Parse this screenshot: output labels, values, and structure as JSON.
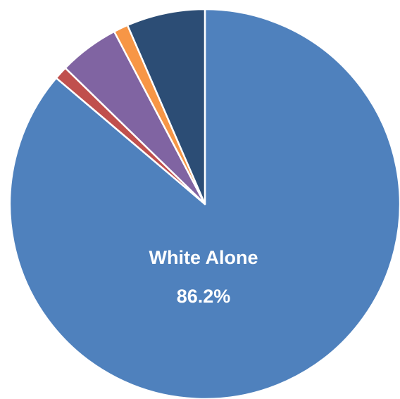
{
  "chart_data": {
    "type": "pie",
    "slices": [
      {
        "label": "White Alone",
        "value": 86.2,
        "color": "#4f81bd",
        "shown_label": "White Alone",
        "shown_value": "86.2%"
      },
      {
        "label": "",
        "value": 1.1,
        "color": "#c0504d",
        "shown_label": "",
        "shown_value": ""
      },
      {
        "label": "",
        "value": 5.0,
        "color": "#8064a2",
        "shown_label": "",
        "shown_value": ""
      },
      {
        "label": "",
        "value": 1.2,
        "color": "#f79646",
        "shown_label": "",
        "shown_value": ""
      },
      {
        "label": "",
        "value": 6.5,
        "color": "#2c4d75",
        "shown_label": "",
        "shown_value": ""
      }
    ],
    "start_angle_deg": 0,
    "direction": "clockwise",
    "slice_border_color": "#ffffff",
    "title": "",
    "legend": "none"
  }
}
